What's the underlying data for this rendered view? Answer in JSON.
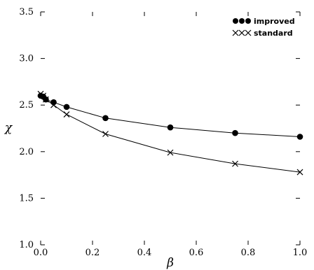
{
  "chart_data": {
    "type": "line",
    "title": "",
    "xlabel": "β",
    "ylabel": "χ",
    "xlim": [
      0.0,
      1.0
    ],
    "ylim": [
      1.0,
      3.5
    ],
    "xticks": [
      "0.0",
      "0.2",
      "0.4",
      "0.6",
      "0.8",
      "1.0"
    ],
    "yticks": [
      "1.0",
      "1.5",
      "2.0",
      "2.5",
      "3.0",
      "3.5"
    ],
    "grid": false,
    "legend_position": "top-right",
    "series": [
      {
        "name": "improved",
        "marker": "circle",
        "x": [
          0.0,
          0.01,
          0.02,
          0.05,
          0.1,
          0.25,
          0.5,
          0.75,
          1.0
        ],
        "y": [
          2.6,
          2.59,
          2.56,
          2.53,
          2.48,
          2.36,
          2.26,
          2.2,
          2.16
        ]
      },
      {
        "name": "standard",
        "marker": "x",
        "x": [
          0.0,
          0.01,
          0.02,
          0.05,
          0.1,
          0.25,
          0.5,
          0.75,
          1.0
        ],
        "y": [
          2.62,
          2.6,
          2.56,
          2.5,
          2.4,
          2.19,
          1.99,
          1.87,
          1.78
        ]
      }
    ]
  }
}
